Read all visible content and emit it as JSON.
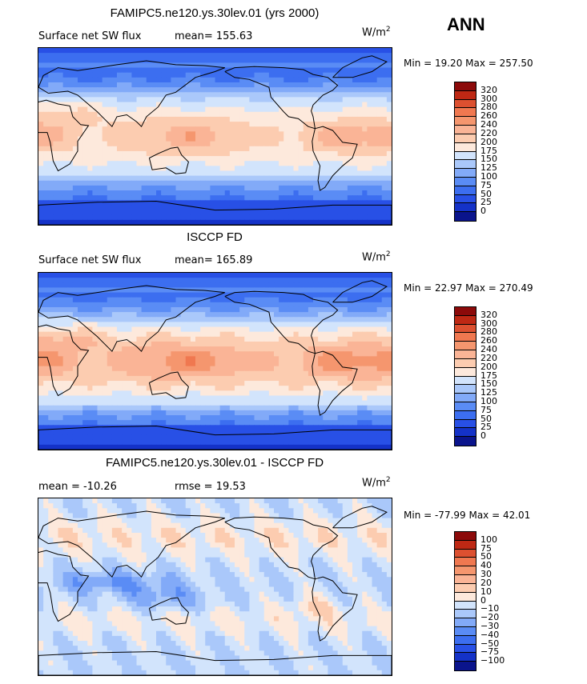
{
  "season": "ANN",
  "colors": {
    "abs": [
      "#0a148c",
      "#1432c8",
      "#2850e6",
      "#3c6ef0",
      "#5a8cf5",
      "#82aaf8",
      "#aac8fa",
      "#d2e4fc",
      "#fde9dc",
      "#fcccb0",
      "#fab496",
      "#f5966e",
      "#f07850",
      "#dc5030",
      "#be2814",
      "#8c0a0a"
    ],
    "diff": [
      "#0a148c",
      "#1432c8",
      "#2850e6",
      "#3c6ef0",
      "#5a8cf5",
      "#82aaf8",
      "#aac8fa",
      "#d2e4fc",
      "#fde9dc",
      "#fcccb0",
      "#fab496",
      "#f5966e",
      "#f07850",
      "#dc5030",
      "#be2814",
      "#8c0a0a"
    ]
  },
  "panels": [
    {
      "title": "FAMIPC5.ne120.ys.30lev.01 (yrs 2000)",
      "left_label": "Surface net SW flux",
      "stat_label": "mean= 155.63",
      "units": "W/m",
      "units_sup": "2",
      "minmax": "Min =  19.20 Max = 257.50",
      "colorbar_levels": [
        "320",
        "300",
        "280",
        "260",
        "240",
        "220",
        "200",
        "175",
        "150",
        "125",
        "100",
        "75",
        "50",
        "25",
        "0"
      ],
      "scheme": "model"
    },
    {
      "title": "ISCCP FD",
      "left_label": "Surface net SW flux",
      "stat_label": "mean= 165.89",
      "units": "W/m",
      "units_sup": "2",
      "minmax": "Min =  22.97 Max = 270.49",
      "colorbar_levels": [
        "320",
        "300",
        "280",
        "260",
        "240",
        "220",
        "200",
        "175",
        "150",
        "125",
        "100",
        "75",
        "50",
        "25",
        "0"
      ],
      "scheme": "obs"
    },
    {
      "title": "FAMIPC5.ne120.ys.30lev.01 - ISCCP FD",
      "left_label": "mean = -10.26",
      "stat_label": "rmse =  19.53",
      "units": "W/m",
      "units_sup": "2",
      "minmax": "Min = -77.99 Max =  42.01",
      "colorbar_levels": [
        "100",
        "75",
        "50",
        "40",
        "30",
        "20",
        "10",
        "0",
        "−10",
        "−20",
        "−30",
        "−40",
        "−50",
        "−75",
        "−100"
      ],
      "scheme": "diff"
    }
  ],
  "chart_data": [
    {
      "type": "heatmap",
      "title": "FAMIPC5.ne120.ys.30lev.01 (yrs 2000)",
      "variable": "Surface net SW flux",
      "units": "W/m2",
      "mean": 155.63,
      "min": 19.2,
      "max": 257.5,
      "levels": [
        0,
        25,
        50,
        75,
        100,
        125,
        150,
        175,
        200,
        220,
        240,
        260,
        280,
        300,
        320
      ]
    },
    {
      "type": "heatmap",
      "title": "ISCCP FD",
      "variable": "Surface net SW flux",
      "units": "W/m2",
      "mean": 165.89,
      "min": 22.97,
      "max": 270.49,
      "levels": [
        0,
        25,
        50,
        75,
        100,
        125,
        150,
        175,
        200,
        220,
        240,
        260,
        280,
        300,
        320
      ]
    },
    {
      "type": "heatmap",
      "title": "FAMIPC5.ne120.ys.30lev.01 - ISCCP FD",
      "units": "W/m2",
      "mean": -10.26,
      "rmse": 19.53,
      "min": -77.99,
      "max": 42.01,
      "levels": [
        -100,
        -75,
        -50,
        -40,
        -30,
        -20,
        -10,
        0,
        10,
        20,
        30,
        40,
        50,
        75,
        100
      ]
    }
  ]
}
